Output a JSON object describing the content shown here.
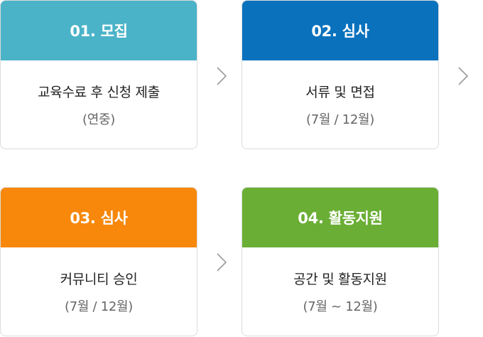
{
  "steps": [
    {
      "header": "01. 모집",
      "title": "교육수료 후 신청 제출",
      "sub": "(연중)",
      "color": "#4bb3c8"
    },
    {
      "header": "02. 심사",
      "title": "서류 및 면접",
      "sub": "(7월 / 12월)",
      "color": "#0a72bd"
    },
    {
      "header": "03. 심사",
      "title": "커뮤니티 승인",
      "sub": "(7월 / 12월)",
      "color": "#f7880b"
    },
    {
      "header": "04. 활동지원",
      "title": "공간 및 활동지원",
      "sub": "(7월 ~ 12월)",
      "color": "#6aae35"
    }
  ],
  "arrow_color": "#9a9a9a",
  "arrow_icon": "chevron-right-icon"
}
